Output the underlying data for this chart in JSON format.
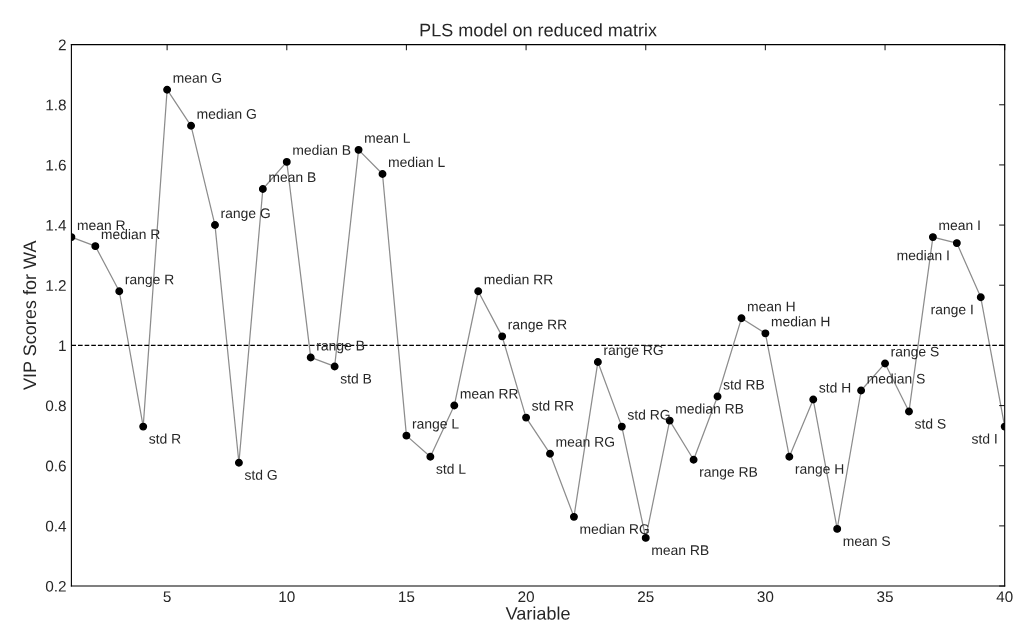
{
  "chart_data": {
    "type": "line",
    "title": "PLS model on reduced matrix",
    "xlabel": "Variable",
    "ylabel": "VIP Scores for WA",
    "x": [
      1,
      2,
      3,
      4,
      5,
      6,
      7,
      8,
      9,
      10,
      11,
      12,
      13,
      14,
      15,
      16,
      17,
      18,
      19,
      20,
      21,
      22,
      23,
      24,
      25,
      26,
      27,
      28,
      29,
      30,
      31,
      32,
      33,
      34,
      35,
      36,
      37,
      38,
      39,
      40
    ],
    "series": [
      {
        "color": "#000000",
        "values": [
          1.36,
          1.33,
          1.18,
          0.73,
          1.85,
          1.73,
          1.4,
          0.61,
          1.52,
          1.61,
          0.96,
          0.93,
          1.65,
          1.57,
          0.7,
          0.63,
          0.8,
          1.18,
          1.03,
          0.76,
          0.64,
          0.43,
          0.945,
          0.73,
          0.36,
          0.75,
          0.62,
          0.83,
          1.09,
          1.04,
          0.63,
          0.82,
          0.39,
          0.85,
          0.94,
          0.78,
          1.36,
          1.34,
          1.16,
          0.73
        ]
      }
    ],
    "annotations": [
      {
        "text": "mean R",
        "x": 1,
        "y": 1.36
      },
      {
        "text": "median R",
        "x": 2,
        "y": 1.33
      },
      {
        "text": "range R",
        "x": 3,
        "y": 1.18
      },
      {
        "text": "std R",
        "x": 4,
        "y": 0.73
      },
      {
        "text": "mean G",
        "x": 5,
        "y": 1.85
      },
      {
        "text": "median G",
        "x": 6,
        "y": 1.73
      },
      {
        "text": "range G",
        "x": 7,
        "y": 1.4
      },
      {
        "text": "std G",
        "x": 8,
        "y": 0.61
      },
      {
        "text": "mean B",
        "x": 9,
        "y": 1.52
      },
      {
        "text": "median B",
        "x": 10,
        "y": 1.61
      },
      {
        "text": "range B",
        "x": 11,
        "y": 0.96
      },
      {
        "text": "std B",
        "x": 12,
        "y": 0.93
      },
      {
        "text": "mean L",
        "x": 13,
        "y": 1.65
      },
      {
        "text": "median L",
        "x": 14,
        "y": 1.57
      },
      {
        "text": "range L",
        "x": 15,
        "y": 0.7
      },
      {
        "text": "std L",
        "x": 16,
        "y": 0.63
      },
      {
        "text": "mean RR",
        "x": 17,
        "y": 0.8
      },
      {
        "text": "median RR",
        "x": 18,
        "y": 1.18
      },
      {
        "text": "range RR",
        "x": 19,
        "y": 1.03
      },
      {
        "text": "std RR",
        "x": 20,
        "y": 0.76
      },
      {
        "text": "mean RG",
        "x": 21,
        "y": 0.64
      },
      {
        "text": "median RG",
        "x": 22,
        "y": 0.43
      },
      {
        "text": "range RG",
        "x": 23,
        "y": 0.945
      },
      {
        "text": "std RG",
        "x": 24,
        "y": 0.73
      },
      {
        "text": "mean RB",
        "x": 25,
        "y": 0.36
      },
      {
        "text": "median RB",
        "x": 26,
        "y": 0.75
      },
      {
        "text": "range RB",
        "x": 27,
        "y": 0.62
      },
      {
        "text": "std RB",
        "x": 28,
        "y": 0.83
      },
      {
        "text": "mean H",
        "x": 29,
        "y": 1.09
      },
      {
        "text": "median H",
        "x": 30,
        "y": 1.04
      },
      {
        "text": "range H",
        "x": 31,
        "y": 0.63
      },
      {
        "text": "std H",
        "x": 32,
        "y": 0.82
      },
      {
        "text": "mean S",
        "x": 33,
        "y": 0.39
      },
      {
        "text": "median S",
        "x": 34,
        "y": 0.85
      },
      {
        "text": "range S",
        "x": 35,
        "y": 0.94
      },
      {
        "text": "std S",
        "x": 36,
        "y": 0.78
      },
      {
        "text": "mean I",
        "x": 37,
        "y": 1.36
      },
      {
        "text": "median I",
        "x": 38,
        "y": 1.34
      },
      {
        "text": "range I",
        "x": 39,
        "y": 1.16
      },
      {
        "text": "std I",
        "x": 40,
        "y": 0.73
      }
    ],
    "ref_lines": [
      {
        "axis": "y",
        "value": 1,
        "color": "#000000",
        "line_style": "dashed"
      }
    ],
    "xlim": [
      1,
      40
    ],
    "xticks": [
      5,
      10,
      15,
      20,
      25,
      30,
      35,
      40
    ],
    "ylim": [
      0.2,
      2
    ],
    "yticks": [
      0.2,
      0.4,
      0.6,
      0.8,
      1,
      1.2,
      1.4,
      1.6,
      1.8,
      2
    ],
    "marker": "circle",
    "line_style": "solid",
    "grid": false,
    "legend": false
  }
}
